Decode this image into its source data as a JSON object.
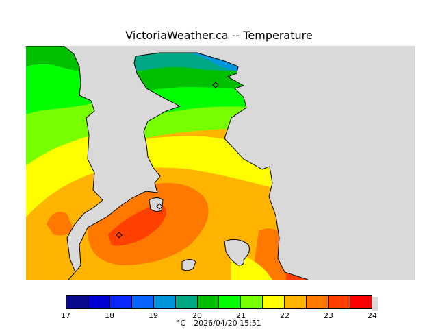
{
  "title": "VictoriaWeather.ca -- Temperature",
  "map": {
    "background_color": "#d9d9d9",
    "coastline_color": "#000000",
    "stations": [
      "station-marker",
      "station-marker",
      "station-marker"
    ]
  },
  "legend": {
    "ticks": [
      "17",
      "18",
      "19",
      "20",
      "21",
      "22",
      "23",
      "24"
    ],
    "colors": [
      "#0a0a8c",
      "#0000d6",
      "#0a28ff",
      "#0a64ff",
      "#0096dc",
      "#00a884",
      "#00be00",
      "#00ff00",
      "#78ff00",
      "#ffff00",
      "#ffb400",
      "#ff7800",
      "#ff4000",
      "#ff0000"
    ]
  },
  "footer": {
    "unit": "°C",
    "timestamp": "2026/04/20 15:51"
  }
}
